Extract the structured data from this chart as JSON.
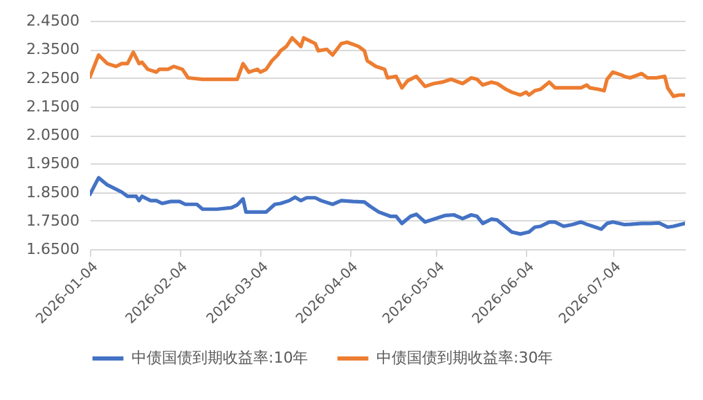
{
  "chart_data": {
    "type": "line",
    "legend": "bottom",
    "grid": "y",
    "marker": "none",
    "line_style": "solid",
    "ylim": [
      1.65,
      2.45
    ],
    "yticks": [
      {
        "value": 1.65,
        "label": "1.6500"
      },
      {
        "value": 1.75,
        "label": "1.7500"
      },
      {
        "value": 1.85,
        "label": "1.8500"
      },
      {
        "value": 1.95,
        "label": "1.9500"
      },
      {
        "value": 2.05,
        "label": "2.0500"
      },
      {
        "value": 2.15,
        "label": "2.1500"
      },
      {
        "value": 2.25,
        "label": "2.2500"
      },
      {
        "value": 2.35,
        "label": "2.3500"
      },
      {
        "value": 2.45,
        "label": "2.4500"
      }
    ],
    "xlim": [
      "2026-01-04",
      "2026-07-29"
    ],
    "xticks": [
      {
        "value": "2026-01-04",
        "label": "2026-01-04"
      },
      {
        "value": "2026-02-04",
        "label": "2026-02-04"
      },
      {
        "value": "2026-03-04",
        "label": "2026-03-04"
      },
      {
        "value": "2026-04-04",
        "label": "2026-04-04"
      },
      {
        "value": "2026-05-04",
        "label": "2026-05-04"
      },
      {
        "value": "2026-06-04",
        "label": "2026-06-04"
      },
      {
        "value": "2026-07-04",
        "label": "2026-07-04"
      }
    ],
    "series": [
      {
        "name": "中债国债到期收益率:10年",
        "color": "#4472c4",
        "x": [
          "2026-01-04",
          "2026-01-07",
          "2026-01-10",
          "2026-01-13",
          "2026-01-15",
          "2026-01-17",
          "2026-01-20",
          "2026-01-21",
          "2026-01-22",
          "2026-01-25",
          "2026-01-27",
          "2026-01-29",
          "2026-02-01",
          "2026-02-04",
          "2026-02-06",
          "2026-02-10",
          "2026-02-12",
          "2026-02-17",
          "2026-02-22",
          "2026-02-24",
          "2026-02-26",
          "2026-02-27",
          "2026-03-03",
          "2026-03-06",
          "2026-03-09",
          "2026-03-11",
          "2026-03-14",
          "2026-03-16",
          "2026-03-18",
          "2026-03-20",
          "2026-03-23",
          "2026-03-25",
          "2026-03-29",
          "2026-04-01",
          "2026-04-05",
          "2026-04-09",
          "2026-04-11",
          "2026-04-14",
          "2026-04-18",
          "2026-04-20",
          "2026-04-22",
          "2026-04-25",
          "2026-04-27",
          "2026-04-30",
          "2026-05-03",
          "2026-05-07",
          "2026-05-10",
          "2026-05-13",
          "2026-05-16",
          "2026-05-18",
          "2026-05-20",
          "2026-05-23",
          "2026-05-25",
          "2026-05-28",
          "2026-05-30",
          "2026-06-02",
          "2026-06-05",
          "2026-06-07",
          "2026-06-09",
          "2026-06-12",
          "2026-06-14",
          "2026-06-17",
          "2026-06-20",
          "2026-06-23",
          "2026-06-25",
          "2026-06-28",
          "2026-06-30",
          "2026-07-02",
          "2026-07-04",
          "2026-07-08",
          "2026-07-10",
          "2026-07-14",
          "2026-07-17",
          "2026-07-20",
          "2026-07-23",
          "2026-07-25",
          "2026-07-29"
        ],
        "values": [
          1.842,
          1.9,
          1.875,
          1.86,
          1.85,
          1.835,
          1.835,
          1.82,
          1.835,
          1.82,
          1.82,
          1.81,
          1.817,
          1.817,
          1.807,
          1.807,
          1.79,
          1.79,
          1.795,
          1.805,
          1.826,
          1.78,
          1.78,
          1.78,
          1.807,
          1.81,
          1.82,
          1.832,
          1.82,
          1.83,
          1.83,
          1.82,
          1.807,
          1.82,
          1.817,
          1.815,
          1.8,
          1.78,
          1.765,
          1.765,
          1.74,
          1.765,
          1.772,
          1.745,
          1.755,
          1.768,
          1.77,
          1.757,
          1.77,
          1.765,
          1.74,
          1.755,
          1.752,
          1.727,
          1.71,
          1.703,
          1.71,
          1.727,
          1.73,
          1.745,
          1.745,
          1.73,
          1.736,
          1.745,
          1.737,
          1.727,
          1.72,
          1.74,
          1.745,
          1.736,
          1.737,
          1.74,
          1.74,
          1.742,
          1.727,
          1.73,
          1.74
        ]
      },
      {
        "name": "中债国债到期收益率:30年",
        "color": "#ed7d31",
        "x": [
          "2026-01-04",
          "2026-01-07",
          "2026-01-10",
          "2026-01-13",
          "2026-01-15",
          "2026-01-17",
          "2026-01-19",
          "2026-01-21",
          "2026-01-22",
          "2026-01-24",
          "2026-01-27",
          "2026-01-28",
          "2026-01-31",
          "2026-02-02",
          "2026-02-05",
          "2026-02-07",
          "2026-02-12",
          "2026-02-19",
          "2026-02-24",
          "2026-02-26",
          "2026-02-28",
          "2026-03-03",
          "2026-03-04",
          "2026-03-06",
          "2026-03-08",
          "2026-03-10",
          "2026-03-11",
          "2026-03-13",
          "2026-03-15",
          "2026-03-18",
          "2026-03-19",
          "2026-03-21",
          "2026-03-23",
          "2026-03-24",
          "2026-03-27",
          "2026-03-29",
          "2026-04-01",
          "2026-04-03",
          "2026-04-07",
          "2026-04-09",
          "2026-04-10",
          "2026-04-13",
          "2026-04-16",
          "2026-04-17",
          "2026-04-20",
          "2026-04-22",
          "2026-04-24",
          "2026-04-27",
          "2026-04-30",
          "2026-05-03",
          "2026-05-06",
          "2026-05-09",
          "2026-05-13",
          "2026-05-16",
          "2026-05-18",
          "2026-05-20",
          "2026-05-23",
          "2026-05-25",
          "2026-05-28",
          "2026-05-30",
          "2026-06-02",
          "2026-06-04",
          "2026-06-05",
          "2026-06-07",
          "2026-06-09",
          "2026-06-12",
          "2026-06-14",
          "2026-06-17",
          "2026-06-20",
          "2026-06-23",
          "2026-06-25",
          "2026-06-26",
          "2026-06-29",
          "2026-07-01",
          "2026-07-02",
          "2026-07-04",
          "2026-07-07",
          "2026-07-08",
          "2026-07-10",
          "2026-07-14",
          "2026-07-16",
          "2026-07-19",
          "2026-07-22",
          "2026-07-23",
          "2026-07-25",
          "2026-07-27",
          "2026-07-29"
        ],
        "values": [
          2.253,
          2.33,
          2.3,
          2.29,
          2.3,
          2.3,
          2.34,
          2.3,
          2.305,
          2.28,
          2.27,
          2.28,
          2.28,
          2.29,
          2.28,
          2.25,
          2.245,
          2.245,
          2.245,
          2.3,
          2.27,
          2.28,
          2.27,
          2.28,
          2.31,
          2.33,
          2.345,
          2.36,
          2.39,
          2.36,
          2.39,
          2.38,
          2.37,
          2.345,
          2.35,
          2.33,
          2.37,
          2.375,
          2.36,
          2.345,
          2.31,
          2.29,
          2.28,
          2.25,
          2.255,
          2.215,
          2.24,
          2.255,
          2.22,
          2.23,
          2.235,
          2.245,
          2.23,
          2.25,
          2.245,
          2.225,
          2.235,
          2.23,
          2.21,
          2.2,
          2.19,
          2.2,
          2.19,
          2.205,
          2.21,
          2.235,
          2.215,
          2.215,
          2.215,
          2.215,
          2.225,
          2.215,
          2.21,
          2.205,
          2.245,
          2.27,
          2.26,
          2.255,
          2.25,
          2.265,
          2.25,
          2.25,
          2.255,
          2.215,
          2.185,
          2.19,
          2.19
        ]
      }
    ]
  }
}
